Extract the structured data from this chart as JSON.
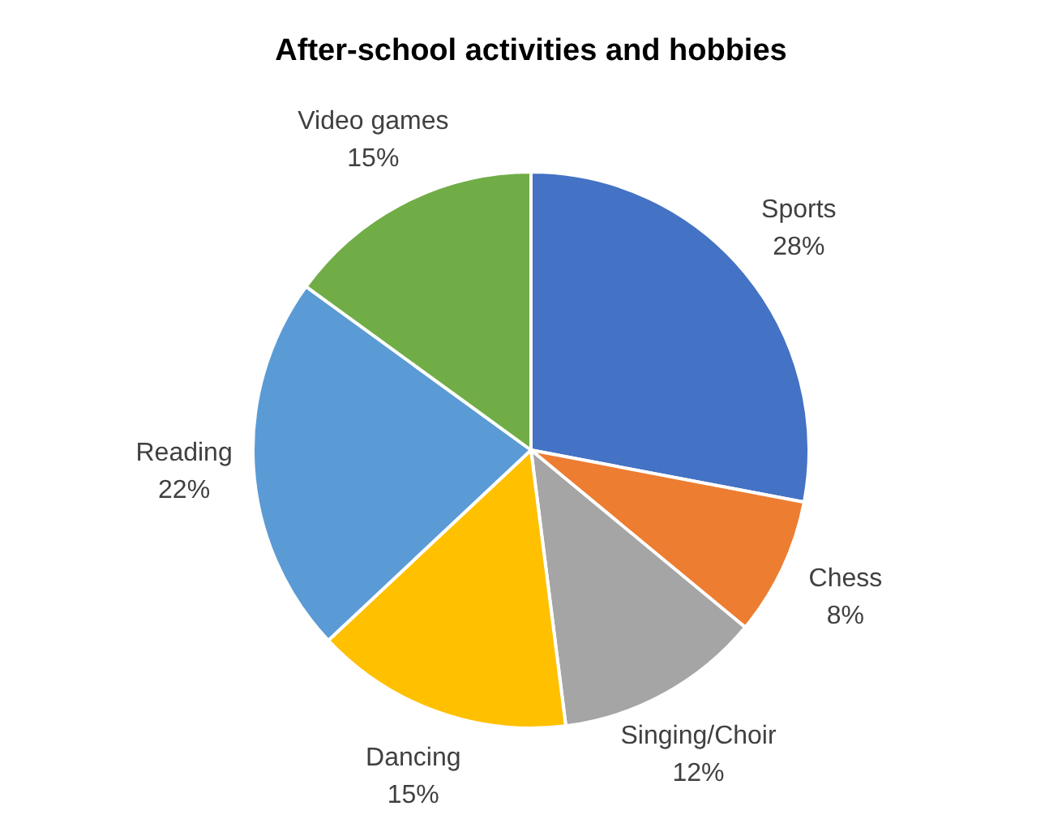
{
  "chart_data": {
    "type": "pie",
    "title": "After-school activities and hobbies",
    "categories": [
      "Sports",
      "Chess",
      "Singing/Choir",
      "Dancing",
      "Reading",
      "Video games"
    ],
    "values": [
      28,
      8,
      12,
      15,
      22,
      15
    ],
    "value_labels": [
      "28%",
      "8%",
      "12%",
      "15%",
      "22%",
      "15%"
    ],
    "colors": [
      "#4472c4",
      "#ed7d31",
      "#a5a5a5",
      "#ffc000",
      "#5b9bd5",
      "#70ad47"
    ],
    "legend": false
  }
}
